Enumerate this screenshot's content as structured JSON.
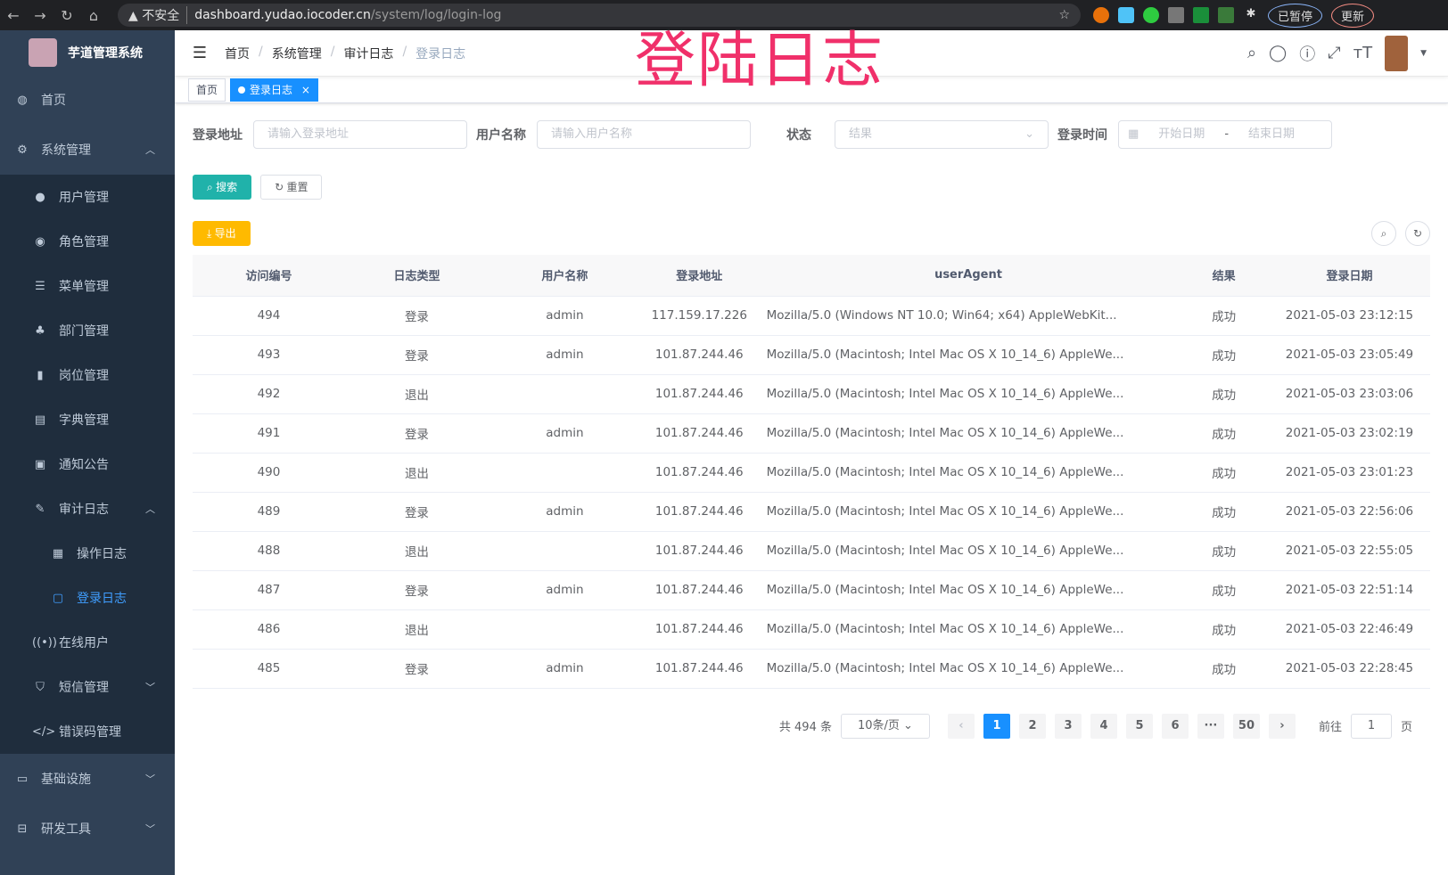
{
  "browser": {
    "not_secure": "不安全",
    "host": "dashboard.yudao.iocoder.cn",
    "path": "/system/log/login-log",
    "paused": "已暂停",
    "update": "更新"
  },
  "overlay_title": "登陆日志",
  "sidebar": {
    "title": "芋道管理系统",
    "items": [
      {
        "label": "首页",
        "icon": "dashboard-icon"
      },
      {
        "label": "系统管理",
        "icon": "gear-icon",
        "open": true,
        "children": [
          {
            "label": "用户管理"
          },
          {
            "label": "角色管理"
          },
          {
            "label": "菜单管理"
          },
          {
            "label": "部门管理"
          },
          {
            "label": "岗位管理"
          },
          {
            "label": "字典管理"
          },
          {
            "label": "通知公告"
          },
          {
            "label": "审计日志",
            "open": true,
            "children": [
              {
                "label": "操作日志"
              },
              {
                "label": "登录日志",
                "active": true
              }
            ]
          },
          {
            "label": "在线用户"
          },
          {
            "label": "短信管理"
          },
          {
            "label": "错误码管理"
          }
        ]
      },
      {
        "label": "基础设施"
      },
      {
        "label": "研发工具"
      }
    ]
  },
  "breadcrumb": [
    "首页",
    "系统管理",
    "审计日志",
    "登录日志"
  ],
  "tags": [
    "首页",
    "登录日志"
  ],
  "filters": {
    "ip_label": "登录地址",
    "ip_ph": "请输入登录地址",
    "user_label": "用户名称",
    "user_ph": "请输入用户名称",
    "status_label": "状态",
    "status_ph": "结果",
    "time_label": "登录时间",
    "start_ph": "开始日期",
    "end_ph": "结束日期",
    "sep": "-"
  },
  "buttons": {
    "search": "搜索",
    "reset": "重置",
    "export": "导出"
  },
  "table": {
    "headers": [
      "访问编号",
      "日志类型",
      "用户名称",
      "登录地址",
      "userAgent",
      "结果",
      "登录日期"
    ],
    "rows": [
      [
        "494",
        "登录",
        "admin",
        "117.159.17.226",
        "Mozilla/5.0 (Windows NT 10.0; Win64; x64) AppleWebKit...",
        "成功",
        "2021-05-03 23:12:15"
      ],
      [
        "493",
        "登录",
        "admin",
        "101.87.244.46",
        "Mozilla/5.0 (Macintosh; Intel Mac OS X 10_14_6) AppleWe...",
        "成功",
        "2021-05-03 23:05:49"
      ],
      [
        "492",
        "退出",
        "",
        "101.87.244.46",
        "Mozilla/5.0 (Macintosh; Intel Mac OS X 10_14_6) AppleWe...",
        "成功",
        "2021-05-03 23:03:06"
      ],
      [
        "491",
        "登录",
        "admin",
        "101.87.244.46",
        "Mozilla/5.0 (Macintosh; Intel Mac OS X 10_14_6) AppleWe...",
        "成功",
        "2021-05-03 23:02:19"
      ],
      [
        "490",
        "退出",
        "",
        "101.87.244.46",
        "Mozilla/5.0 (Macintosh; Intel Mac OS X 10_14_6) AppleWe...",
        "成功",
        "2021-05-03 23:01:23"
      ],
      [
        "489",
        "登录",
        "admin",
        "101.87.244.46",
        "Mozilla/5.0 (Macintosh; Intel Mac OS X 10_14_6) AppleWe...",
        "成功",
        "2021-05-03 22:56:06"
      ],
      [
        "488",
        "退出",
        "",
        "101.87.244.46",
        "Mozilla/5.0 (Macintosh; Intel Mac OS X 10_14_6) AppleWe...",
        "成功",
        "2021-05-03 22:55:05"
      ],
      [
        "487",
        "登录",
        "admin",
        "101.87.244.46",
        "Mozilla/5.0 (Macintosh; Intel Mac OS X 10_14_6) AppleWe...",
        "成功",
        "2021-05-03 22:51:14"
      ],
      [
        "486",
        "退出",
        "",
        "101.87.244.46",
        "Mozilla/5.0 (Macintosh; Intel Mac OS X 10_14_6) AppleWe...",
        "成功",
        "2021-05-03 22:46:49"
      ],
      [
        "485",
        "登录",
        "admin",
        "101.87.244.46",
        "Mozilla/5.0 (Macintosh; Intel Mac OS X 10_14_6) AppleWe...",
        "成功",
        "2021-05-03 22:28:45"
      ]
    ]
  },
  "pagination": {
    "total": "共 494 条",
    "page_size": "10条/页",
    "pages": [
      "1",
      "2",
      "3",
      "4",
      "5",
      "6",
      "···",
      "50"
    ],
    "current": "1",
    "goto": "前往",
    "goto_value": "1",
    "page_unit": "页"
  }
}
